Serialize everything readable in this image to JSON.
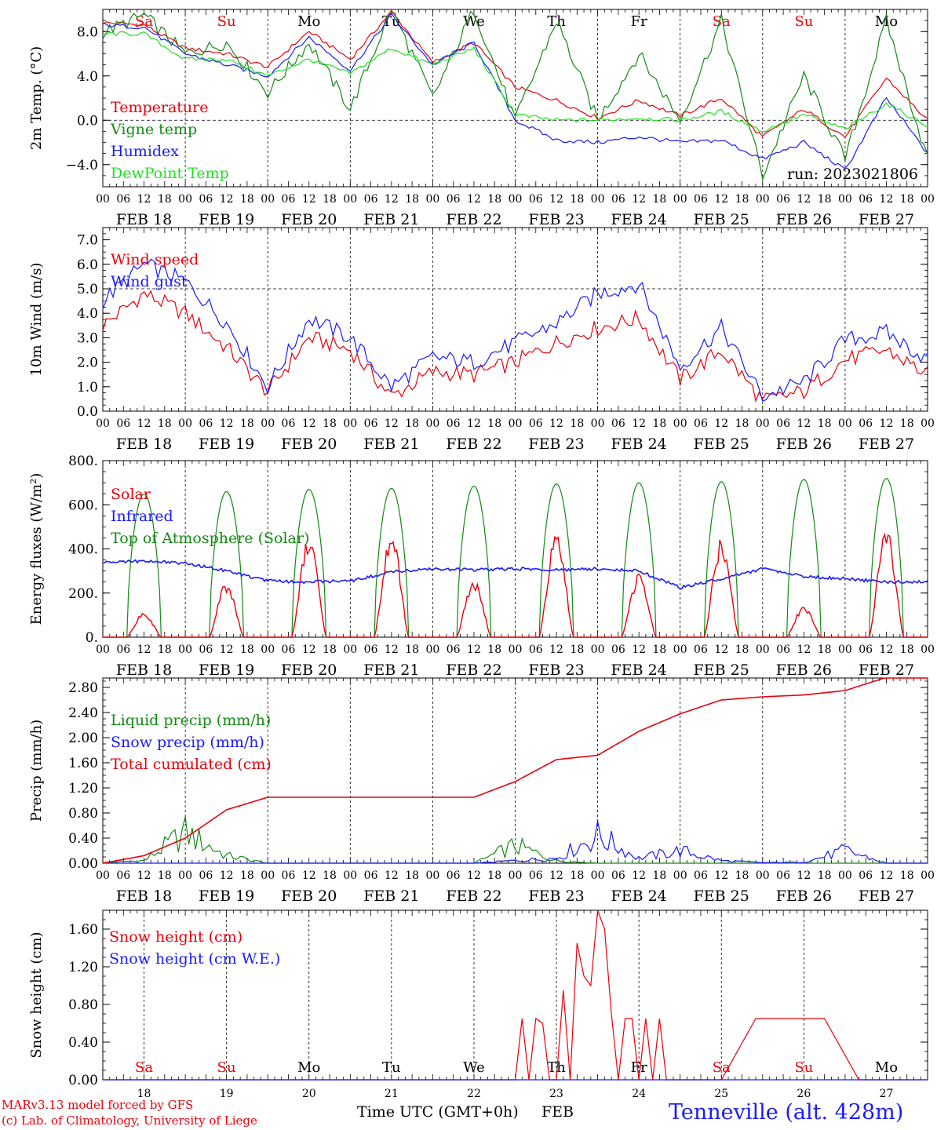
{
  "footer": {
    "credit_line1": "MARv3.13 model forced by GFS",
    "credit_line2": "(c) Lab. of Climatology, University of Liege",
    "xlabel": "Time UTC (GMT+0h)",
    "month": "FEB",
    "station": "Tenneville (alt. 428m)"
  },
  "colors": {
    "red": "#e8000b",
    "green": "#138a13",
    "blue": "#1a1aff",
    "lightgreen": "#22e022",
    "text": "#000000"
  },
  "chart_data": [
    {
      "type": "line",
      "ylabel": "2m Temp. (°C)",
      "ylim": [
        -6,
        10
      ],
      "yticks": [
        -4,
        0,
        4,
        8
      ],
      "ytick_labels": [
        "−4.0",
        "0.0",
        "4.0",
        "8.0"
      ],
      "ref_line": 0,
      "day_labels": [
        "Sa",
        "Su",
        "Mo",
        "Tu",
        "We",
        "Th",
        "Fr",
        "Sa",
        "Su",
        "Mo"
      ],
      "day_label_colors": [
        "red",
        "red",
        "black",
        "black",
        "black",
        "black",
        "black",
        "red",
        "red",
        "black"
      ],
      "date_labels": [
        "FEB 18",
        "FEB 19",
        "FEB 20",
        "FEB 21",
        "FEB 22",
        "FEB 23",
        "FEB 24",
        "FEB 25",
        "FEB 26",
        "FEB 27"
      ],
      "hour_labels": [
        "00",
        "06",
        "12",
        "18"
      ],
      "annotation": "run: 2023021806",
      "x_hours": [
        0,
        12,
        24,
        36,
        48,
        60,
        72,
        84,
        96,
        108,
        120,
        132,
        144,
        156,
        168,
        180,
        192,
        204,
        216,
        228,
        240
      ],
      "series": [
        {
          "name": "Temperature",
          "color": "red",
          "values": [
            8.8,
            8.6,
            6.5,
            6.0,
            4.8,
            8.0,
            5.5,
            9.8,
            5.2,
            7.0,
            3.0,
            1.8,
            0.2,
            1.8,
            0.4,
            2.0,
            -1.5,
            1.0,
            -1.5,
            3.8,
            0.0
          ]
        },
        {
          "name": "Vigne temp",
          "color": "green",
          "values": [
            7.9,
            9.5,
            6.0,
            7.0,
            2.5,
            7.0,
            1.0,
            10.0,
            2.0,
            10.0,
            0.0,
            9.0,
            0.0,
            6.0,
            0.0,
            9.0,
            -5.0,
            4.0,
            -3.5,
            9.0,
            -3.5
          ]
        },
        {
          "name": "Humidex",
          "color": "blue",
          "values": [
            8.6,
            8.4,
            6.0,
            5.0,
            4.0,
            7.5,
            4.5,
            9.5,
            5.0,
            7.0,
            0.0,
            -1.8,
            -2.0,
            -1.5,
            -2.0,
            -1.8,
            -3.5,
            -2.0,
            -4.5,
            2.0,
            -3.0
          ]
        },
        {
          "name": "DewPoint Temp",
          "color": "lightgreen",
          "values": [
            7.8,
            7.8,
            5.5,
            5.5,
            4.0,
            5.5,
            4.2,
            6.5,
            5.0,
            6.5,
            0.5,
            0.0,
            0.0,
            0.2,
            0.0,
            0.8,
            -1.0,
            0.5,
            -0.8,
            1.5,
            -0.5
          ]
        }
      ]
    },
    {
      "type": "line",
      "ylabel": "10m Wind (m/s)",
      "ylim": [
        0,
        7.5
      ],
      "yticks": [
        0,
        1,
        2,
        3,
        4,
        5,
        6,
        7
      ],
      "ytick_labels": [
        "0.0",
        "1.0",
        "2.0",
        "3.0",
        "4.0",
        "5.0",
        "6.0",
        "7.0"
      ],
      "ref_line": 5,
      "date_labels": [
        "FEB 18",
        "FEB 19",
        "FEB 20",
        "FEB 21",
        "FEB 22",
        "FEB 23",
        "FEB 24",
        "FEB 25",
        "FEB 26",
        "FEB 27"
      ],
      "hour_labels": [
        "00",
        "06",
        "12",
        "18"
      ],
      "x_hours": [
        0,
        12,
        24,
        36,
        48,
        60,
        72,
        84,
        96,
        108,
        120,
        132,
        144,
        156,
        168,
        180,
        192,
        204,
        216,
        228,
        240
      ],
      "series": [
        {
          "name": "Wind speed",
          "color": "red",
          "values": [
            3.5,
            4.8,
            4.0,
            2.6,
            0.8,
            3.0,
            2.5,
            0.6,
            1.6,
            1.5,
            2.0,
            2.8,
            3.4,
            3.8,
            1.3,
            2.5,
            0.4,
            0.8,
            2.1,
            2.5,
            1.5
          ]
        },
        {
          "name": "Wind gust",
          "color": "blue",
          "values": [
            4.5,
            6.0,
            5.3,
            3.6,
            1.0,
            3.8,
            3.0,
            1.0,
            2.2,
            2.0,
            2.8,
            3.6,
            4.8,
            5.2,
            1.8,
            3.4,
            0.6,
            1.2,
            2.9,
            3.2,
            2.1
          ]
        }
      ]
    },
    {
      "type": "line",
      "ylabel": "Energy fluxes (W/m²)",
      "ylim": [
        0,
        800
      ],
      "yticks": [
        0,
        200,
        400,
        600,
        800
      ],
      "ytick_labels": [
        "0.",
        "200.",
        "400.",
        "600.",
        "800."
      ],
      "date_labels": [
        "FEB 18",
        "FEB 19",
        "FEB 20",
        "FEB 21",
        "FEB 22",
        "FEB 23",
        "FEB 24",
        "FEB 25",
        "FEB 26",
        "FEB 27"
      ],
      "hour_labels": [
        "00",
        "06",
        "12",
        "18"
      ],
      "toa_peaks": [
        650,
        660,
        670,
        675,
        685,
        695,
        700,
        705,
        715,
        720
      ],
      "solar_peaks": [
        110,
        250,
        460,
        470,
        260,
        470,
        290,
        450,
        140,
        500
      ],
      "infrared_values": [
        340,
        345,
        335,
        300,
        255,
        250,
        255,
        295,
        310,
        305,
        310,
        305,
        310,
        300,
        225,
        265,
        310,
        275,
        265,
        250,
        250
      ],
      "x_hours": [
        0,
        12,
        24,
        36,
        48,
        60,
        72,
        84,
        96,
        108,
        120,
        132,
        144,
        156,
        168,
        180,
        192,
        204,
        216,
        228,
        240
      ],
      "series": [
        {
          "name": "Solar",
          "color": "red"
        },
        {
          "name": "Infrared",
          "color": "blue"
        },
        {
          "name": "Top of Atmosphere (Solar)",
          "color": "green"
        }
      ]
    },
    {
      "type": "line",
      "ylabel": "Precip (mm/h)",
      "ylim": [
        0,
        2.95
      ],
      "yticks": [
        0,
        0.4,
        0.8,
        1.2,
        1.6,
        2.0,
        2.4,
        2.8
      ],
      "ytick_labels": [
        "0.00",
        "0.40",
        "0.80",
        "1.20",
        "1.60",
        "2.00",
        "2.40",
        "2.80"
      ],
      "date_labels": [
        "FEB 18",
        "FEB 19",
        "FEB 20",
        "FEB 21",
        "FEB 22",
        "FEB 23",
        "FEB 24",
        "FEB 25",
        "FEB 26",
        "FEB 27"
      ],
      "hour_labels": [
        "00",
        "06",
        "12",
        "18"
      ],
      "x_hours": [
        0,
        12,
        24,
        36,
        48,
        60,
        72,
        84,
        96,
        108,
        120,
        132,
        144,
        156,
        168,
        180,
        192,
        204,
        216,
        228,
        240
      ],
      "series": [
        {
          "name": "Liquid precip (mm/h)",
          "color": "green",
          "values": [
            0.01,
            0.05,
            0.6,
            0.15,
            0.0,
            0.0,
            0.0,
            0.0,
            0.0,
            0.0,
            0.35,
            0.05,
            0.0,
            0.0,
            0.0,
            0.0,
            0.0,
            0.0,
            0.0,
            0.0,
            0.0
          ]
        },
        {
          "name": "Snow precip (mm/h)",
          "color": "blue",
          "values": [
            0.0,
            0.0,
            0.0,
            0.0,
            0.0,
            0.0,
            0.0,
            0.0,
            0.0,
            0.0,
            0.05,
            0.1,
            0.55,
            0.1,
            0.25,
            0.05,
            0.01,
            0.02,
            0.25,
            0.0,
            0.0
          ]
        },
        {
          "name": "Total cumulated (cm)",
          "color": "red",
          "values": [
            0.0,
            0.12,
            0.4,
            0.85,
            1.05,
            1.05,
            1.05,
            1.05,
            1.05,
            1.05,
            1.3,
            1.65,
            1.72,
            2.1,
            2.38,
            2.6,
            2.65,
            2.68,
            2.75,
            2.96,
            2.96
          ]
        }
      ]
    },
    {
      "type": "line",
      "ylabel": "Snow height (cm)",
      "ylim": [
        0,
        1.8
      ],
      "yticks": [
        0,
        0.4,
        0.8,
        1.2,
        1.6
      ],
      "ytick_labels": [
        "0.00",
        "0.40",
        "0.80",
        "1.20",
        "1.60"
      ],
      "day_labels": [
        "Sa",
        "Su",
        "Mo",
        "Tu",
        "We",
        "Th",
        "Fr",
        "Sa",
        "Su",
        "Mo"
      ],
      "day_label_colors": [
        "red",
        "red",
        "black",
        "black",
        "black",
        "black",
        "black",
        "red",
        "red",
        "black"
      ],
      "day_numbers": [
        "18",
        "19",
        "20",
        "21",
        "22",
        "23",
        "24",
        "25",
        "26",
        "27"
      ],
      "x_hours": [
        0,
        120,
        122,
        124,
        126,
        128,
        130,
        132,
        134,
        136,
        138,
        140,
        142,
        144,
        146,
        148,
        150,
        152,
        154,
        156,
        158,
        160,
        162,
        164,
        166,
        168,
        170,
        172,
        174,
        176,
        178,
        180,
        190,
        200,
        210,
        220,
        240
      ],
      "series": [
        {
          "name": "Snow height (cm)",
          "color": "red",
          "values": [
            0,
            0,
            0.65,
            0,
            0.65,
            0.6,
            0,
            0,
            0.95,
            0,
            1.45,
            1.1,
            1.0,
            1.8,
            1.6,
            0.7,
            0,
            0.65,
            0.65,
            0,
            0.65,
            0,
            0.65,
            0,
            0,
            0,
            0,
            0,
            0,
            0,
            0,
            0,
            0.65,
            0.65,
            0.65,
            0,
            0
          ]
        },
        {
          "name": "Snow height (cm W.E.)",
          "color": "blue",
          "values": [
            0,
            0,
            0,
            0,
            0,
            0,
            0,
            0,
            0,
            0,
            0,
            0,
            0,
            0,
            0,
            0,
            0,
            0,
            0,
            0,
            0,
            0,
            0,
            0,
            0,
            0,
            0,
            0,
            0,
            0,
            0,
            0,
            0,
            0,
            0,
            0,
            0
          ]
        }
      ]
    }
  ]
}
